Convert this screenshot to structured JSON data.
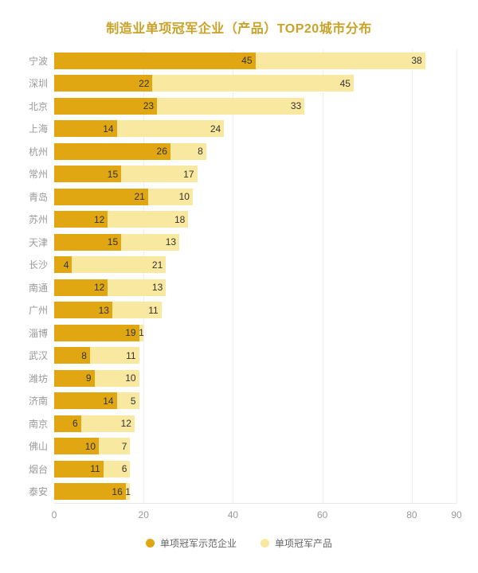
{
  "colors": {
    "series1": "#e0a712",
    "series2": "#f9e8a0",
    "title": "#c9a227",
    "axis_label": "#999999",
    "value_label": "#333333",
    "gridline": "#efefef",
    "legend_text": "#666666"
  },
  "chart_data": {
    "type": "bar",
    "orientation": "horizontal",
    "stacked": true,
    "title": "制造业单项冠军企业（产品）TOP20城市分布",
    "categories": [
      "宁波",
      "深圳",
      "北京",
      "上海",
      "杭州",
      "常州",
      "青岛",
      "苏州",
      "天津",
      "长沙",
      "南通",
      "广州",
      "淄博",
      "武汉",
      "潍坊",
      "济南",
      "南京",
      "佛山",
      "烟台",
      "泰安"
    ],
    "series": [
      {
        "name": "单项冠军示范企业",
        "values": [
          45,
          22,
          23,
          14,
          26,
          15,
          21,
          12,
          15,
          4,
          12,
          13,
          19,
          8,
          9,
          14,
          6,
          10,
          11,
          16
        ]
      },
      {
        "name": "单项冠军产品",
        "values": [
          38,
          45,
          33,
          24,
          8,
          17,
          10,
          18,
          13,
          21,
          13,
          11,
          1,
          11,
          10,
          5,
          12,
          7,
          6,
          1
        ]
      }
    ],
    "xlim": [
      0,
      90
    ],
    "x_ticks": [
      0,
      20,
      40,
      60,
      80,
      90
    ],
    "legend_position": "bottom",
    "value_labels": "inside-right",
    "grid": true
  }
}
